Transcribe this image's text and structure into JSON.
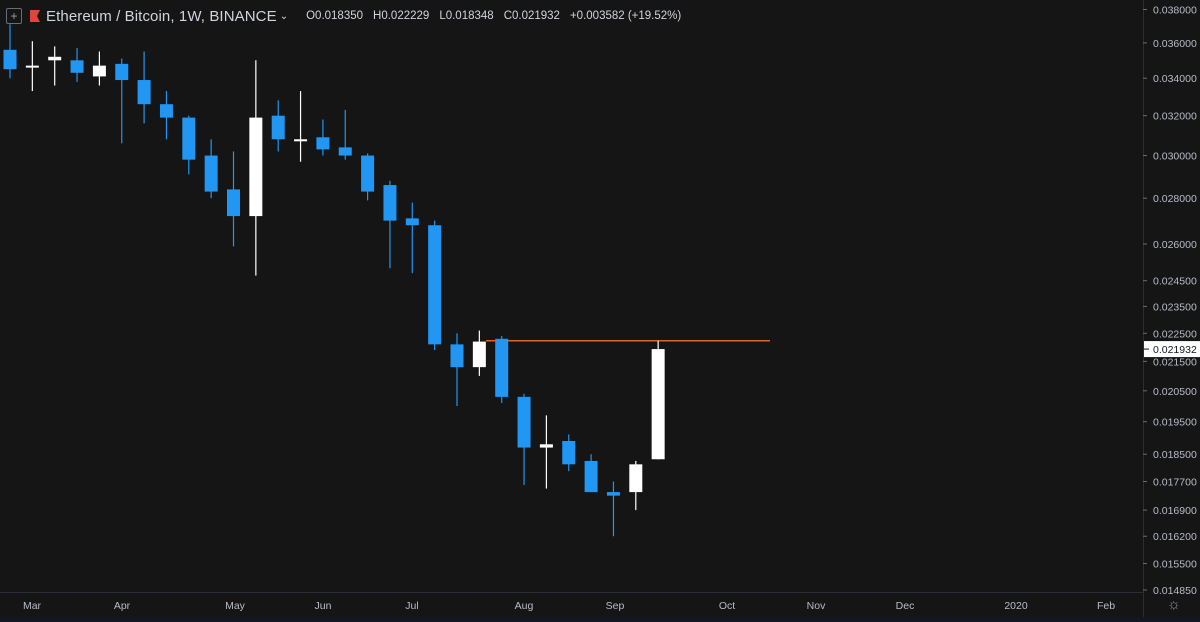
{
  "header": {
    "symbol": "Ethereum / Bitcoin",
    "interval": "1W",
    "exchange": "BINANCE",
    "open": "O0.018350",
    "high": "H0.022229",
    "low": "L0.018348",
    "close": "C0.021932",
    "change": "+0.003582 (+19.52%)"
  },
  "colors": {
    "bg": "#151515",
    "down": "#2196f3",
    "up": "#ffffff",
    "hline": "#e0632b",
    "axis_text": "#b8bcc6"
  },
  "chart_data": {
    "type": "candlestick",
    "price_axis_ticks": [
      "0.038000",
      "0.036000",
      "0.034000",
      "0.032000",
      "0.030000",
      "0.028000",
      "0.026000",
      "0.024500",
      "0.023500",
      "0.022500",
      "0.021500",
      "0.020500",
      "0.019500",
      "0.018500",
      "0.017700",
      "0.016900",
      "0.016200",
      "0.015500",
      "0.014850"
    ],
    "time_axis_ticks": [
      "Mar",
      "Apr",
      "May",
      "Jun",
      "Jul",
      "Aug",
      "Sep",
      "Oct",
      "Nov",
      "Dec",
      "2020",
      "Feb"
    ],
    "last_price_label": "0.021932",
    "horizontal_line": 0.02223,
    "candles": [
      {
        "o": 0.0356,
        "h": 0.0371,
        "l": 0.034,
        "c": 0.0345
      },
      {
        "o": 0.0346,
        "h": 0.0361,
        "l": 0.0333,
        "c": 0.0347
      },
      {
        "o": 0.035,
        "h": 0.0358,
        "l": 0.0336,
        "c": 0.0352
      },
      {
        "o": 0.035,
        "h": 0.0357,
        "l": 0.0338,
        "c": 0.0343
      },
      {
        "o": 0.0341,
        "h": 0.0355,
        "l": 0.0336,
        "c": 0.0347
      },
      {
        "o": 0.0348,
        "h": 0.0351,
        "l": 0.0306,
        "c": 0.0339
      },
      {
        "o": 0.0339,
        "h": 0.0355,
        "l": 0.0316,
        "c": 0.0326
      },
      {
        "o": 0.0326,
        "h": 0.0333,
        "l": 0.0308,
        "c": 0.0319
      },
      {
        "o": 0.0319,
        "h": 0.032,
        "l": 0.0291,
        "c": 0.0298
      },
      {
        "o": 0.03,
        "h": 0.0308,
        "l": 0.028,
        "c": 0.0283
      },
      {
        "o": 0.0284,
        "h": 0.0302,
        "l": 0.0259,
        "c": 0.0272
      },
      {
        "o": 0.0272,
        "h": 0.035,
        "l": 0.0247,
        "c": 0.0319
      },
      {
        "o": 0.032,
        "h": 0.0328,
        "l": 0.0302,
        "c": 0.0308
      },
      {
        "o": 0.0307,
        "h": 0.0333,
        "l": 0.0297,
        "c": 0.0308
      },
      {
        "o": 0.0309,
        "h": 0.0318,
        "l": 0.03,
        "c": 0.0303
      },
      {
        "o": 0.0304,
        "h": 0.0323,
        "l": 0.0298,
        "c": 0.03
      },
      {
        "o": 0.03,
        "h": 0.0301,
        "l": 0.0279,
        "c": 0.0283
      },
      {
        "o": 0.0286,
        "h": 0.0288,
        "l": 0.025,
        "c": 0.027
      },
      {
        "o": 0.0271,
        "h": 0.0278,
        "l": 0.0248,
        "c": 0.0268
      },
      {
        "o": 0.0268,
        "h": 0.027,
        "l": 0.0219,
        "c": 0.0221
      },
      {
        "o": 0.0221,
        "h": 0.0225,
        "l": 0.02,
        "c": 0.0213
      },
      {
        "o": 0.0213,
        "h": 0.0226,
        "l": 0.021,
        "c": 0.0222
      },
      {
        "o": 0.0223,
        "h": 0.0224,
        "l": 0.0201,
        "c": 0.0203
      },
      {
        "o": 0.0203,
        "h": 0.0204,
        "l": 0.0176,
        "c": 0.0187
      },
      {
        "o": 0.0187,
        "h": 0.0197,
        "l": 0.0175,
        "c": 0.0188
      },
      {
        "o": 0.0189,
        "h": 0.0191,
        "l": 0.018,
        "c": 0.0182
      },
      {
        "o": 0.0183,
        "h": 0.0185,
        "l": 0.0174,
        "c": 0.0174
      },
      {
        "o": 0.0174,
        "h": 0.0177,
        "l": 0.0162,
        "c": 0.0173
      },
      {
        "o": 0.0174,
        "h": 0.0183,
        "l": 0.0169,
        "c": 0.0182
      },
      {
        "o": 0.01835,
        "h": 0.022229,
        "l": 0.018348,
        "c": 0.021932
      }
    ]
  }
}
